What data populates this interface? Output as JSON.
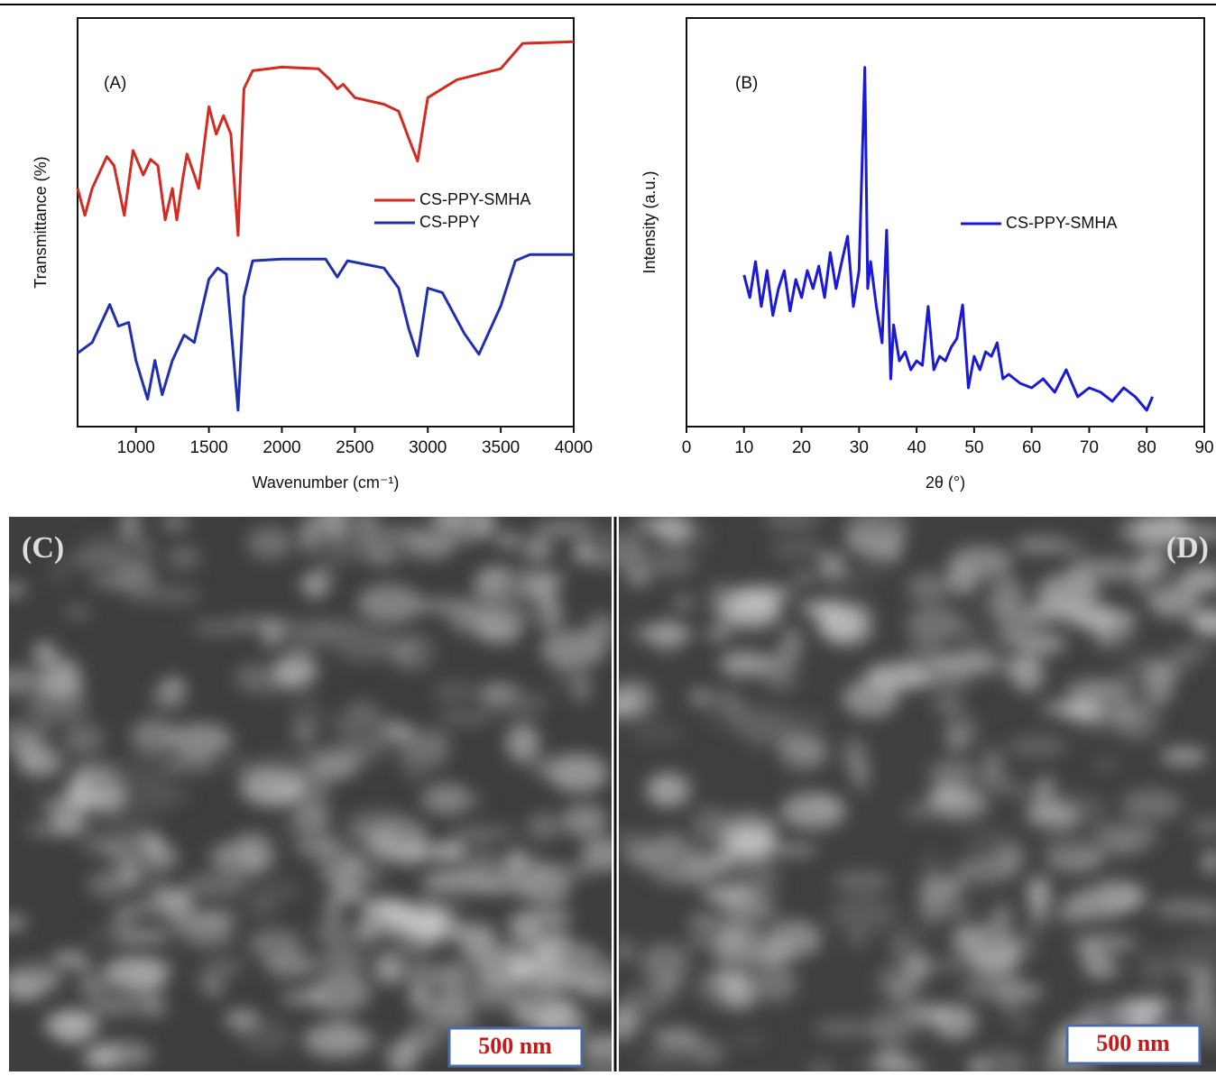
{
  "chart_data": [
    {
      "type": "line",
      "panel_label": "(A)",
      "xlabel": "Wavenumber (cm⁻¹)",
      "ylabel": "Transmittance (%)",
      "xlim": [
        600,
        4000
      ],
      "xticks": [
        1000,
        1500,
        2000,
        2500,
        3000,
        3500,
        4000
      ],
      "ylim": [
        0,
        100
      ],
      "series": [
        {
          "name": "CS-PPY-SMHA",
          "color": "#d42a20",
          "x": [
            600,
            650,
            700,
            800,
            850,
            920,
            980,
            1050,
            1100,
            1150,
            1200,
            1250,
            1280,
            1320,
            1350,
            1400,
            1430,
            1500,
            1550,
            1600,
            1650,
            1700,
            1740,
            1800,
            2000,
            2250,
            2330,
            2380,
            2420,
            2500,
            2700,
            2800,
            2870,
            2930,
            3000,
            3200,
            3500,
            3650,
            4000
          ],
          "values": [
            58.3,
            51.7,
            58.3,
            66.1,
            63.9,
            51.7,
            67.6,
            61.6,
            65.4,
            63.9,
            50.6,
            58.3,
            50.6,
            60.5,
            66.7,
            61.6,
            58.3,
            78.3,
            71.6,
            76.1,
            71.6,
            46.8,
            82.7,
            87.1,
            88.0,
            87.6,
            84.9,
            82.7,
            83.8,
            80.5,
            78.9,
            77.2,
            70.5,
            65.0,
            80.5,
            84.9,
            87.6,
            93.8,
            94.2
          ]
        },
        {
          "name": "CS-PPY",
          "color": "#1f2fb0",
          "x": [
            600,
            700,
            820,
            880,
            950,
            1000,
            1080,
            1130,
            1180,
            1250,
            1330,
            1400,
            1500,
            1560,
            1620,
            1660,
            1700,
            1740,
            1800,
            2000,
            2300,
            2380,
            2450,
            2700,
            2800,
            2870,
            2930,
            3000,
            3100,
            3250,
            3350,
            3500,
            3600,
            3700,
            4000
          ],
          "values": [
            18.0,
            20.6,
            29.9,
            24.6,
            25.5,
            16.2,
            6.7,
            16.2,
            7.8,
            16.2,
            22.4,
            20.6,
            36.1,
            38.8,
            37.3,
            20.6,
            4.0,
            31.7,
            40.6,
            41.0,
            41.0,
            36.6,
            40.6,
            38.8,
            33.9,
            23.9,
            17.3,
            33.9,
            32.8,
            22.8,
            17.7,
            29.5,
            40.6,
            42.1,
            42.1
          ]
        }
      ]
    },
    {
      "type": "line",
      "panel_label": "(B)",
      "xlabel": "2θ (°)",
      "ylabel": "Intensity (a.u.)",
      "xlim": [
        0,
        90
      ],
      "xticks": [
        0,
        10,
        20,
        30,
        40,
        50,
        60,
        70,
        80,
        90
      ],
      "ylim": [
        0,
        100
      ],
      "x": [
        10,
        11,
        12,
        13,
        14,
        15,
        16,
        17,
        18,
        19,
        20,
        21,
        22,
        23,
        24,
        25,
        26,
        27,
        28,
        29,
        30,
        31,
        31.5,
        32,
        33,
        34,
        34.8,
        35.5,
        36,
        37,
        38,
        39,
        40,
        41,
        42,
        43,
        44,
        45,
        46,
        47,
        48,
        49,
        50,
        51,
        52,
        53,
        54,
        55,
        56,
        58,
        60,
        62,
        64,
        66,
        68,
        70,
        72,
        74,
        76,
        78,
        80,
        81
      ],
      "series": [
        {
          "name": "CS-PPY-SMHA",
          "color": "#1a1ad6",
          "values": [
            37.1,
            31.6,
            40.4,
            29.4,
            38.2,
            27.2,
            33.8,
            38.2,
            28.3,
            36.0,
            31.6,
            38.2,
            33.8,
            39.3,
            31.6,
            42.6,
            33.8,
            40.4,
            46.6,
            29.4,
            38.2,
            87.9,
            33.8,
            40.4,
            29.4,
            20.5,
            48.1,
            11.7,
            24.9,
            16.1,
            18.3,
            13.9,
            16.1,
            15.0,
            29.4,
            13.9,
            17.2,
            16.1,
            19.4,
            21.6,
            29.8,
            9.5,
            17.2,
            13.9,
            18.3,
            17.2,
            20.5,
            11.7,
            12.8,
            10.6,
            9.5,
            11.7,
            8.4,
            13.9,
            7.3,
            9.5,
            8.4,
            6.2,
            9.5,
            7.3,
            4.0,
            7.3
          ]
        }
      ]
    }
  ],
  "images": [
    {
      "panel_label": "(C)",
      "scale_bar": "500 nm"
    },
    {
      "panel_label": "(D)",
      "scale_bar": "500 nm"
    }
  ]
}
